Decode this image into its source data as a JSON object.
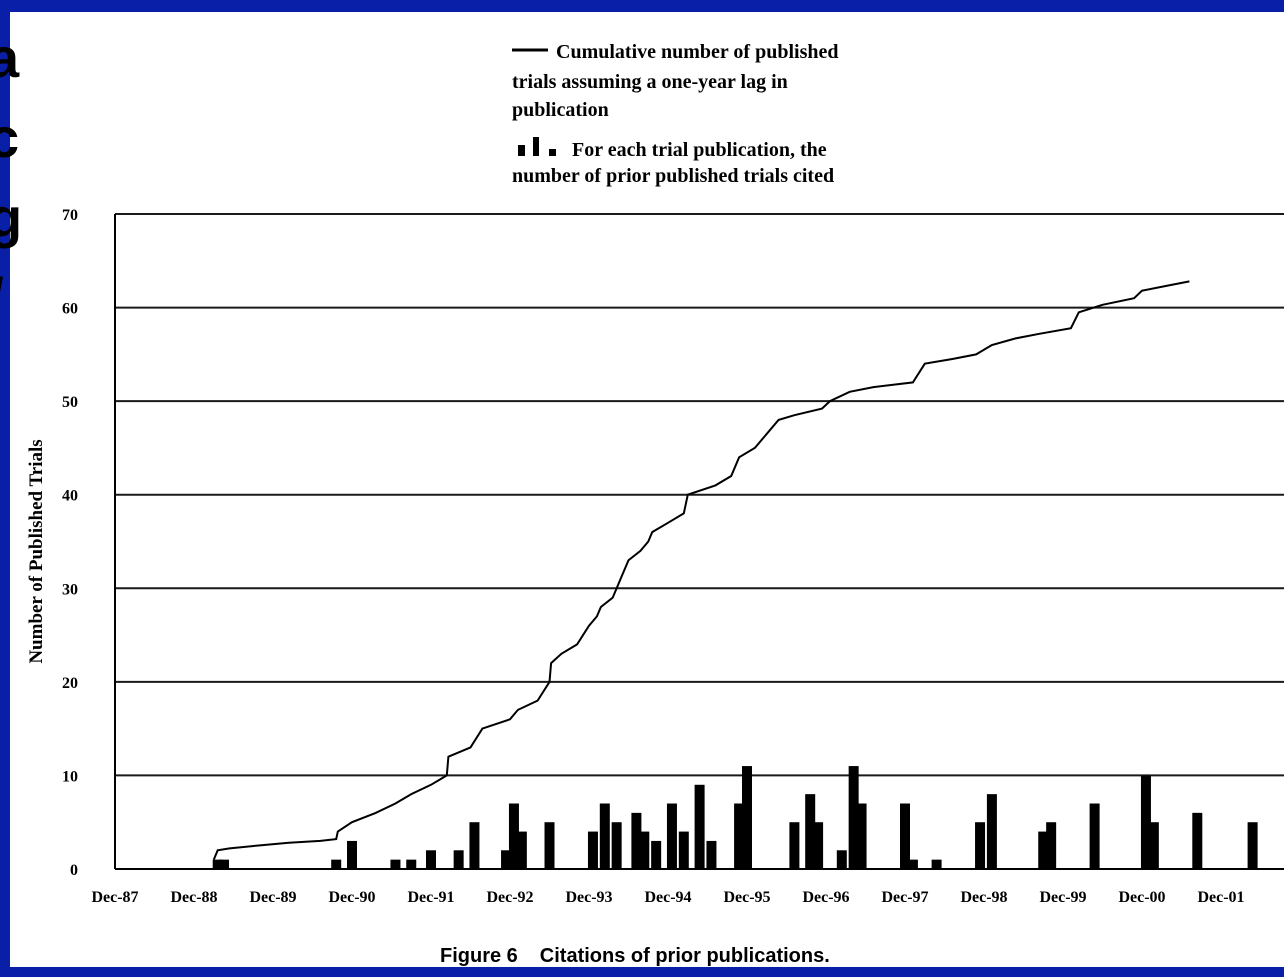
{
  "chart_data": {
    "type": "line+bar",
    "title": "",
    "ylabel": "Number of Published Trials",
    "xlabel": "",
    "ylim": [
      0,
      70
    ],
    "yticks": [
      0,
      10,
      20,
      30,
      40,
      50,
      60,
      70
    ],
    "grid": true,
    "x_tick_labels": [
      "Dec-87",
      "Dec-88",
      "Dec-89",
      "Dec-90",
      "Dec-91",
      "Dec-92",
      "Dec-93",
      "Dec-94",
      "Dec-95",
      "Dec-96",
      "Dec-97",
      "Dec-98",
      "Dec-99",
      "Dec-00",
      "Dec-01"
    ],
    "legend": {
      "placement": "top-center",
      "entries": [
        {
          "symbol": "line",
          "text_lines": [
            "Cumulative number of published",
            "trials assuming a one-year lag in",
            "publication"
          ]
        },
        {
          "symbol": "bars",
          "text_lines": [
            "For each trial publication, the",
            "number of prior published trials cited"
          ]
        }
      ]
    },
    "series": [
      {
        "type": "line",
        "points": [
          [
            1.25,
            1
          ],
          [
            1.3,
            2
          ],
          [
            1.45,
            2.2
          ],
          [
            1.8,
            2.5
          ],
          [
            2.2,
            2.8
          ],
          [
            2.6,
            3
          ],
          [
            2.8,
            3.2
          ],
          [
            2.82,
            4
          ],
          [
            3.0,
            5
          ],
          [
            3.3,
            6
          ],
          [
            3.55,
            7
          ],
          [
            3.75,
            8
          ],
          [
            4.0,
            9
          ],
          [
            4.1,
            9.5
          ],
          [
            4.2,
            10
          ],
          [
            4.22,
            12
          ],
          [
            4.5,
            13
          ],
          [
            4.65,
            15
          ],
          [
            5.0,
            16
          ],
          [
            5.1,
            17
          ],
          [
            5.35,
            18
          ],
          [
            5.5,
            20
          ],
          [
            5.52,
            22
          ],
          [
            5.65,
            23
          ],
          [
            5.85,
            24
          ],
          [
            6.0,
            26
          ],
          [
            6.1,
            27
          ],
          [
            6.15,
            28
          ],
          [
            6.3,
            29
          ],
          [
            6.4,
            31
          ],
          [
            6.5,
            33
          ],
          [
            6.65,
            34
          ],
          [
            6.75,
            35
          ],
          [
            6.8,
            36
          ],
          [
            7.0,
            37
          ],
          [
            7.2,
            38
          ],
          [
            7.25,
            40
          ],
          [
            7.6,
            41
          ],
          [
            7.8,
            42
          ],
          [
            7.9,
            44
          ],
          [
            8.1,
            45
          ],
          [
            8.3,
            47
          ],
          [
            8.4,
            48
          ],
          [
            8.6,
            48.5
          ],
          [
            8.95,
            49.2
          ],
          [
            9.05,
            50
          ],
          [
            9.3,
            51
          ],
          [
            9.6,
            51.5
          ],
          [
            10.1,
            52
          ],
          [
            10.25,
            54
          ],
          [
            10.6,
            54.5
          ],
          [
            10.9,
            55
          ],
          [
            11.1,
            56
          ],
          [
            11.4,
            56.7
          ],
          [
            11.7,
            57.2
          ],
          [
            12.1,
            57.8
          ],
          [
            12.2,
            59.5
          ],
          [
            12.5,
            60.3
          ],
          [
            12.9,
            61
          ],
          [
            13.0,
            61.8
          ],
          [
            13.3,
            62.3
          ],
          [
            13.6,
            62.8
          ]
        ]
      },
      {
        "type": "bar",
        "points": [
          [
            1.3,
            1
          ],
          [
            1.38,
            1
          ],
          [
            2.8,
            1
          ],
          [
            3.0,
            3
          ],
          [
            3.55,
            1
          ],
          [
            3.75,
            1
          ],
          [
            4.0,
            2
          ],
          [
            4.35,
            2
          ],
          [
            4.55,
            5
          ],
          [
            4.95,
            2
          ],
          [
            5.05,
            7
          ],
          [
            5.15,
            4
          ],
          [
            5.5,
            5
          ],
          [
            6.05,
            4
          ],
          [
            6.2,
            7
          ],
          [
            6.35,
            5
          ],
          [
            6.6,
            6
          ],
          [
            6.7,
            4
          ],
          [
            6.85,
            3
          ],
          [
            7.05,
            7
          ],
          [
            7.2,
            4
          ],
          [
            7.4,
            9
          ],
          [
            7.55,
            3
          ],
          [
            7.9,
            7
          ],
          [
            8.0,
            11
          ],
          [
            8.6,
            5
          ],
          [
            8.8,
            8
          ],
          [
            8.9,
            5
          ],
          [
            9.2,
            2
          ],
          [
            9.35,
            11
          ],
          [
            9.45,
            7
          ],
          [
            10.0,
            7
          ],
          [
            10.1,
            1
          ],
          [
            10.4,
            1
          ],
          [
            10.95,
            5
          ],
          [
            11.1,
            8
          ],
          [
            11.75,
            4
          ],
          [
            11.85,
            5
          ],
          [
            12.4,
            7
          ],
          [
            13.05,
            10
          ],
          [
            13.15,
            5
          ],
          [
            13.7,
            6
          ],
          [
            14.4,
            5
          ]
        ]
      }
    ]
  },
  "caption": {
    "number": "Figure 6",
    "text": "Citations of prior publications."
  },
  "left_strip_chars": [
    "a",
    "c",
    "g",
    "/"
  ]
}
